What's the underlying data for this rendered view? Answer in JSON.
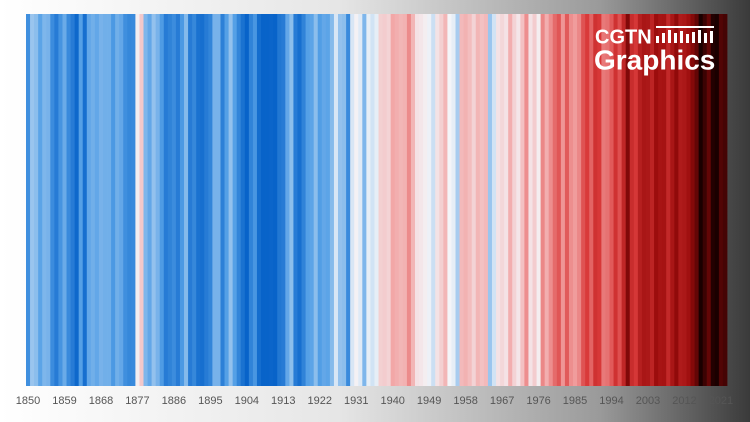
{
  "chart_data": {
    "type": "stripes",
    "logo": {
      "line1": "CGTN",
      "line2": "Graphics"
    },
    "x": [
      1850,
      1851,
      1852,
      1853,
      1854,
      1855,
      1856,
      1857,
      1858,
      1859,
      1860,
      1861,
      1862,
      1863,
      1864,
      1865,
      1866,
      1867,
      1868,
      1869,
      1870,
      1871,
      1872,
      1873,
      1874,
      1875,
      1876,
      1877,
      1878,
      1879,
      1880,
      1881,
      1882,
      1883,
      1884,
      1885,
      1886,
      1887,
      1888,
      1889,
      1890,
      1891,
      1892,
      1893,
      1894,
      1895,
      1896,
      1897,
      1898,
      1899,
      1900,
      1901,
      1902,
      1903,
      1904,
      1905,
      1906,
      1907,
      1908,
      1909,
      1910,
      1911,
      1912,
      1913,
      1914,
      1915,
      1916,
      1917,
      1918,
      1919,
      1920,
      1921,
      1922,
      1923,
      1924,
      1925,
      1926,
      1927,
      1928,
      1929,
      1930,
      1931,
      1932,
      1933,
      1934,
      1935,
      1936,
      1937,
      1938,
      1939,
      1940,
      1941,
      1942,
      1943,
      1944,
      1945,
      1946,
      1947,
      1948,
      1949,
      1950,
      1951,
      1952,
      1953,
      1954,
      1955,
      1956,
      1957,
      1958,
      1959,
      1960,
      1961,
      1962,
      1963,
      1964,
      1965,
      1966,
      1967,
      1968,
      1969,
      1970,
      1971,
      1972,
      1973,
      1974,
      1975,
      1976,
      1977,
      1978,
      1979,
      1980,
      1981,
      1982,
      1983,
      1984,
      1985,
      1986,
      1987,
      1988,
      1989,
      1990,
      1991,
      1992,
      1993,
      1994,
      1995,
      1996,
      1997,
      1998,
      1999,
      2000,
      2001,
      2002,
      2003,
      2004,
      2005,
      2006,
      2007,
      2008,
      2009,
      2010,
      2011,
      2012,
      2013,
      2014,
      2015,
      2016,
      2017,
      2018,
      2019,
      2020,
      2021,
      2022
    ],
    "values": [
      -0.42,
      -0.25,
      -0.27,
      -0.34,
      -0.29,
      -0.3,
      -0.43,
      -0.5,
      -0.4,
      -0.32,
      -0.44,
      -0.5,
      -0.58,
      -0.35,
      -0.55,
      -0.33,
      -0.31,
      -0.33,
      -0.3,
      -0.31,
      -0.31,
      -0.38,
      -0.31,
      -0.33,
      -0.42,
      -0.45,
      -0.44,
      -0.1,
      0.0,
      -0.29,
      -0.33,
      -0.26,
      -0.3,
      -0.37,
      -0.5,
      -0.47,
      -0.43,
      -0.5,
      -0.38,
      -0.28,
      -0.5,
      -0.45,
      -0.54,
      -0.55,
      -0.5,
      -0.46,
      -0.3,
      -0.3,
      -0.48,
      -0.35,
      -0.26,
      -0.35,
      -0.46,
      -0.54,
      -0.63,
      -0.47,
      -0.39,
      -0.56,
      -0.6,
      -0.62,
      -0.59,
      -0.61,
      -0.52,
      -0.5,
      -0.33,
      -0.27,
      -0.5,
      -0.55,
      -0.47,
      -0.35,
      -0.34,
      -0.27,
      -0.36,
      -0.33,
      -0.34,
      -0.28,
      -0.16,
      -0.26,
      -0.27,
      -0.44,
      -0.16,
      -0.11,
      -0.15,
      -0.29,
      -0.14,
      -0.17,
      -0.14,
      -0.02,
      -0.01,
      -0.03,
      0.09,
      0.07,
      0.05,
      0.06,
      0.17,
      0.05,
      -0.07,
      -0.08,
      -0.1,
      -0.13,
      -0.18,
      -0.07,
      -0.02,
      0.05,
      -0.12,
      -0.14,
      -0.23,
      0.04,
      0.06,
      0.03,
      -0.03,
      0.05,
      0.02,
      0.04,
      -0.25,
      -0.17,
      -0.07,
      -0.04,
      -0.07,
      0.07,
      -0.03,
      -0.08,
      0.02,
      0.16,
      -0.07,
      -0.01,
      -0.1,
      0.18,
      0.07,
      0.16,
      0.26,
      0.32,
      0.14,
      0.31,
      0.16,
      0.12,
      0.18,
      0.33,
      0.4,
      0.28,
      0.45,
      0.41,
      0.22,
      0.24,
      0.31,
      0.45,
      0.34,
      0.52,
      0.76,
      0.48,
      0.42,
      0.57,
      0.63,
      0.62,
      0.54,
      0.69,
      0.64,
      0.65,
      0.51,
      0.63,
      0.72,
      0.6,
      0.62,
      0.67,
      0.75,
      0.83,
      1.0,
      0.92,
      0.83,
      0.98,
      1.01,
      0.87,
      0.9
    ],
    "xlim": [
      1850,
      2023
    ],
    "xticks": [
      1850,
      1859,
      1868,
      1877,
      1886,
      1895,
      1904,
      1913,
      1922,
      1931,
      1940,
      1949,
      1958,
      1967,
      1976,
      1985,
      1994,
      2003,
      2012,
      2021
    ],
    "color_scale": {
      "values": [
        -0.6,
        -0.35,
        -0.12,
        0.1,
        0.4,
        0.7,
        1.0
      ],
      "colors": [
        "#0863c9",
        "#55a0e6",
        "#f4f5f8",
        "#f2a3a3",
        "#d93a3a",
        "#9a0b0b",
        "#1a0000"
      ]
    }
  }
}
